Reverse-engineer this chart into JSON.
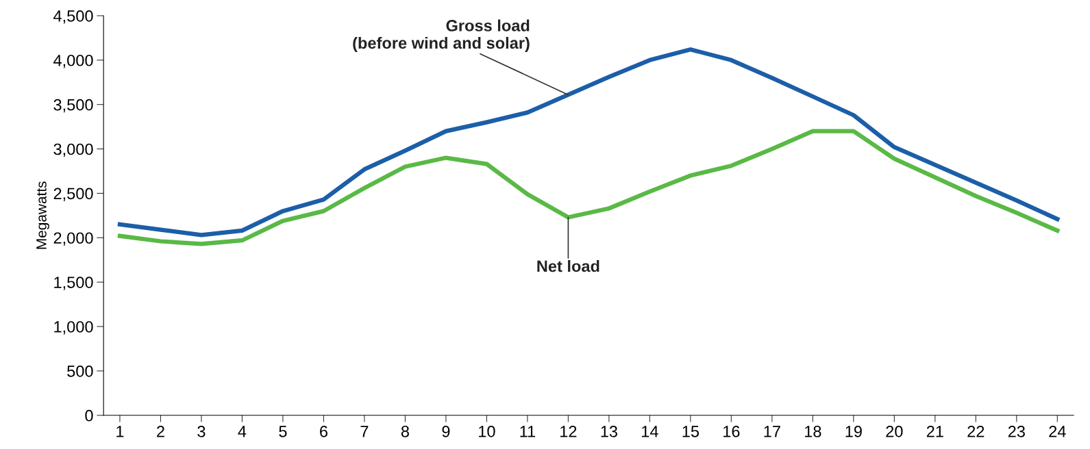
{
  "chart_data": {
    "type": "line",
    "ylabel": "Megawatts",
    "categories": [
      "1",
      "2",
      "3",
      "4",
      "5",
      "6",
      "7",
      "8",
      "9",
      "10",
      "11",
      "12",
      "13",
      "14",
      "15",
      "16",
      "17",
      "18",
      "19",
      "20",
      "21",
      "22",
      "23",
      "24"
    ],
    "series": [
      {
        "color": "#1c5ea8",
        "values": [
          2150,
          2090,
          2030,
          2080,
          2300,
          2430,
          2770,
          2980,
          3200,
          3300,
          3410,
          3610,
          3810,
          4000,
          4120,
          4000,
          3800,
          3590,
          3380,
          3020,
          2820,
          2620,
          2420,
          2210
        ]
      },
      {
        "color": "#5ab946",
        "values": [
          2020,
          1960,
          1930,
          1970,
          2190,
          2300,
          2560,
          2800,
          2900,
          2830,
          2490,
          2230,
          2330,
          2520,
          2700,
          2810,
          3000,
          3200,
          3200,
          2890,
          2680,
          2470,
          2280,
          2080
        ]
      }
    ],
    "annotations": [
      {
        "text": "Gross load\n(before wind and solar)",
        "x": "12",
        "y": 3610
      },
      {
        "text": "Net load",
        "x": "12",
        "y": 2230
      }
    ],
    "ylim": [
      0,
      4500
    ],
    "yticks": [
      {
        "value": 0,
        "label": "0"
      },
      {
        "value": 500,
        "label": "500"
      },
      {
        "value": 1000,
        "label": "1,000"
      },
      {
        "value": 1500,
        "label": "1,500"
      },
      {
        "value": 2000,
        "label": "2,000"
      },
      {
        "value": 2500,
        "label": "2,500"
      },
      {
        "value": 3000,
        "label": "3,000"
      },
      {
        "value": 3500,
        "label": "3,500"
      },
      {
        "value": 4000,
        "label": "4,000"
      },
      {
        "value": 4500,
        "label": "4,500"
      }
    ],
    "grid": false,
    "legend": false,
    "marker": "none",
    "line_style": "solid"
  }
}
